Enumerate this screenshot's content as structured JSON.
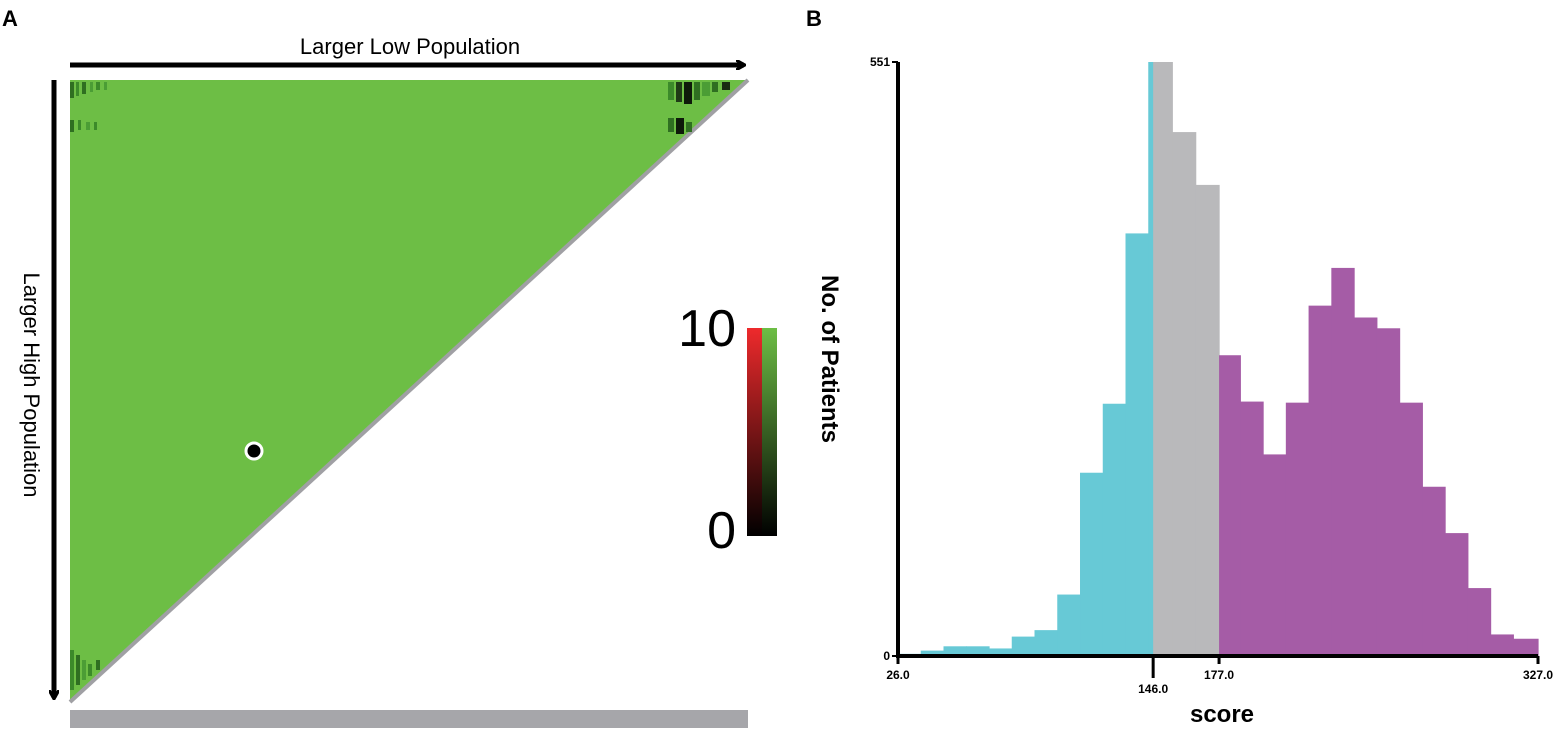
{
  "panels": {
    "a_label": "A",
    "b_label": "B"
  },
  "panel_a": {
    "top_arrow_label": "Larger Low Population",
    "left_arrow_label": "Larger High Population",
    "legend": {
      "max_label": "10",
      "min_label": "0"
    },
    "colors": {
      "fill": "#6dbe45",
      "edge": "#a0a0a4",
      "bar": "#a6a6aa"
    }
  },
  "chart_data": {
    "type": "bar",
    "title": "",
    "xlabel": "score",
    "ylabel": "No. of Patients",
    "xlim": [
      26.0,
      327.0
    ],
    "ylim": [
      0,
      551
    ],
    "y_tick_labels": [
      "551",
      "0"
    ],
    "x_tick_labels": [
      {
        "value": 26.0,
        "label": "26.0",
        "row": "upper"
      },
      {
        "value": 146.0,
        "label": "146.0",
        "row": "lower"
      },
      {
        "value": 177.0,
        "label": "177.0",
        "row": "upper"
      },
      {
        "value": 327.0,
        "label": "327.0",
        "row": "upper"
      }
    ],
    "cutoffs": [
      146.0,
      177.0
    ],
    "bin_width": 10.7,
    "group_colors": {
      "low": "#67c9d6",
      "mid": "#b9b9bb",
      "high": "#a55ca6"
    },
    "bins": [
      {
        "x0": 26.0,
        "count": 2,
        "group": "low"
      },
      {
        "x0": 36.7,
        "count": 5,
        "group": "low"
      },
      {
        "x0": 47.4,
        "count": 9,
        "group": "low"
      },
      {
        "x0": 58.1,
        "count": 9,
        "group": "low"
      },
      {
        "x0": 68.8,
        "count": 7,
        "group": "low"
      },
      {
        "x0": 79.5,
        "count": 18,
        "group": "low"
      },
      {
        "x0": 90.2,
        "count": 24,
        "group": "low"
      },
      {
        "x0": 100.9,
        "count": 57,
        "group": "low"
      },
      {
        "x0": 111.6,
        "count": 170,
        "group": "low"
      },
      {
        "x0": 122.3,
        "count": 234,
        "group": "low"
      },
      {
        "x0": 133.0,
        "count": 392,
        "group": "low"
      },
      {
        "x0": 143.7,
        "count": 551,
        "group": "low"
      },
      {
        "x0": 146.0,
        "count": 551,
        "group": "mid"
      },
      {
        "x0": 155.0,
        "count": 486,
        "group": "mid"
      },
      {
        "x0": 166.0,
        "count": 437,
        "group": "mid"
      },
      {
        "x0": 177.0,
        "count": 279,
        "group": "high"
      },
      {
        "x0": 187.0,
        "count": 236,
        "group": "high"
      },
      {
        "x0": 197.7,
        "count": 187,
        "group": "high"
      },
      {
        "x0": 208.4,
        "count": 235,
        "group": "high"
      },
      {
        "x0": 219.1,
        "count": 325,
        "group": "high"
      },
      {
        "x0": 229.8,
        "count": 360,
        "group": "high"
      },
      {
        "x0": 240.5,
        "count": 314,
        "group": "high"
      },
      {
        "x0": 251.2,
        "count": 304,
        "group": "high"
      },
      {
        "x0": 261.9,
        "count": 235,
        "group": "high"
      },
      {
        "x0": 272.6,
        "count": 157,
        "group": "high"
      },
      {
        "x0": 283.3,
        "count": 114,
        "group": "high"
      },
      {
        "x0": 294.0,
        "count": 63,
        "group": "high"
      },
      {
        "x0": 304.7,
        "count": 20,
        "group": "high"
      },
      {
        "x0": 315.4,
        "count": 16,
        "group": "high"
      }
    ]
  }
}
